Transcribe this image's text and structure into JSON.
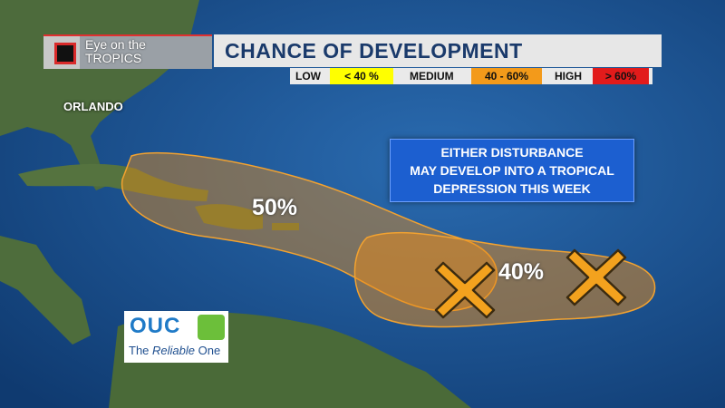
{
  "bug": {
    "line1": "Eye on the",
    "line2": "TROPICS"
  },
  "title": "CHANCE OF DEVELOPMENT",
  "legend": {
    "low_label": "LOW",
    "low_range": "< 40 %",
    "medium_label": "MEDIUM",
    "medium_range": "40 - 60%",
    "high_label": "HIGH",
    "high_range": "> 60%"
  },
  "colors": {
    "low": "#ffff00",
    "medium": "#f39a1a",
    "high": "#e21b1b",
    "ocean": "#1f5a9a",
    "land": "#4b6a3a",
    "zone": "#e98b19"
  },
  "city": "ORLANDO",
  "info": {
    "line1": "EITHER DISTURBANCE",
    "line2": "MAY DEVELOP INTO A TROPICAL",
    "line3": "DEPRESSION THIS WEEK"
  },
  "areas": [
    {
      "chance": "50%"
    },
    {
      "chance": "40%"
    }
  ],
  "disturbance_markers": [
    "x-marker",
    "x-marker"
  ],
  "logo": {
    "word": "OUC",
    "tag_prefix": "The ",
    "tag_italic": "Reliable",
    "tag_suffix": " One"
  }
}
